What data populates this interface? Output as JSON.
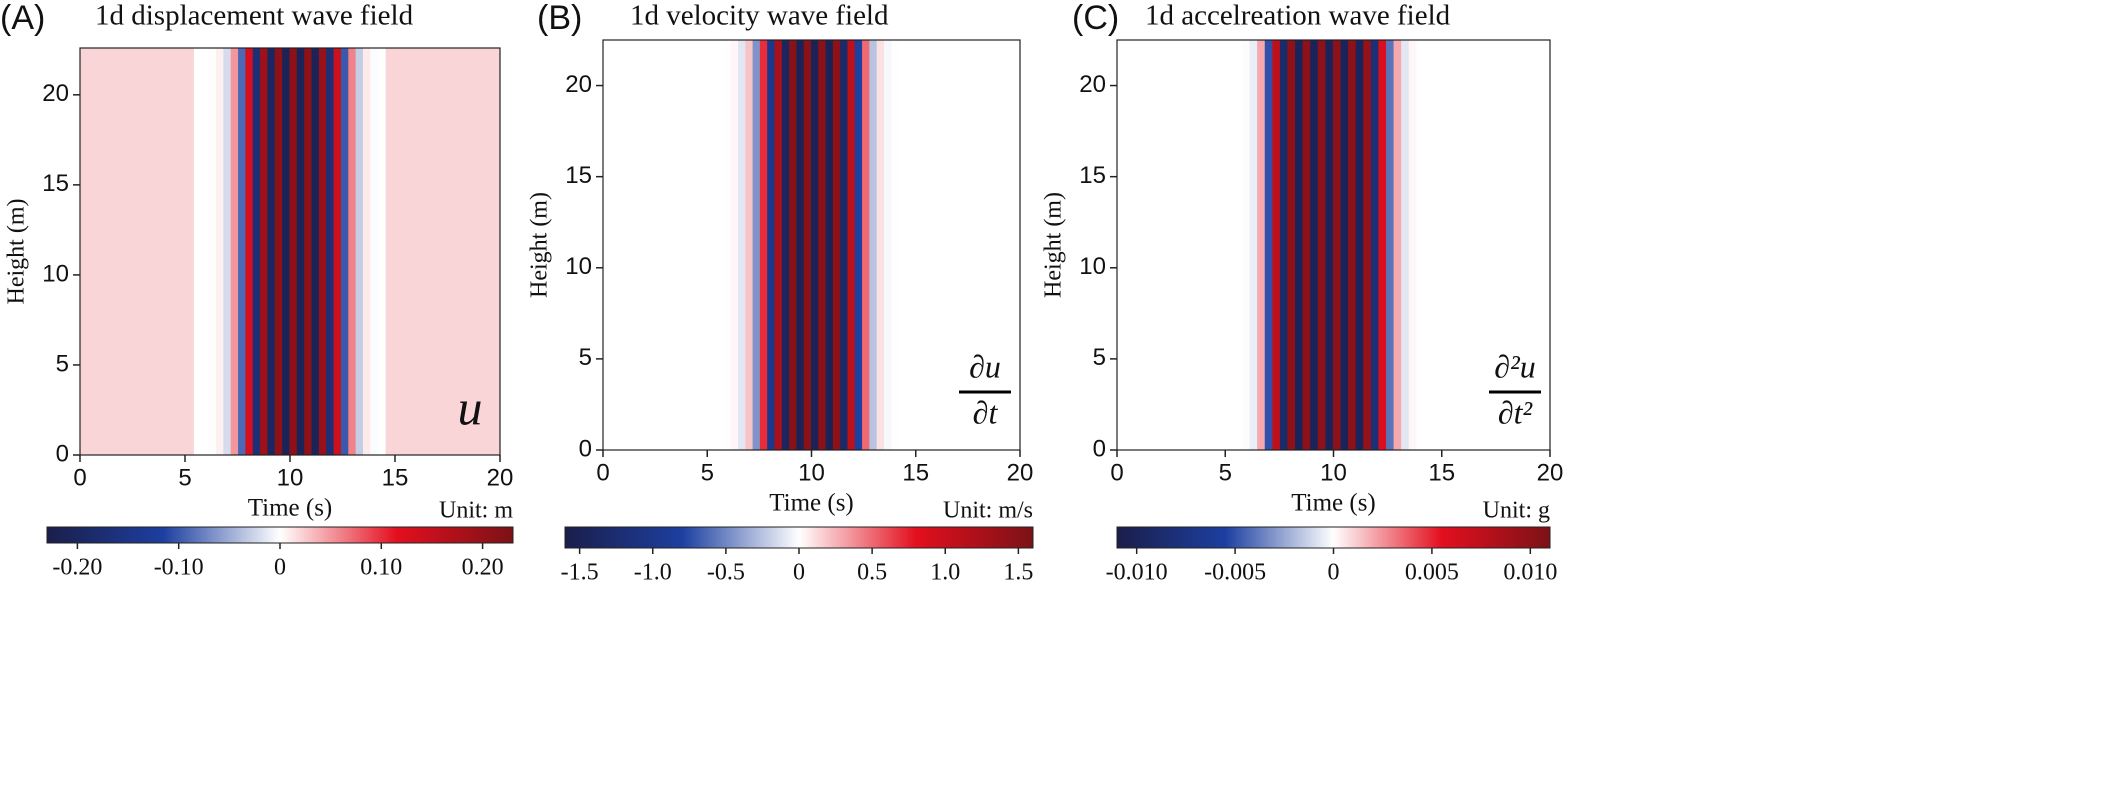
{
  "chart_data": [
    {
      "type": "heatmap",
      "panel": "(A)",
      "title": "1d displacement wave field",
      "xlabel": "Time (s)",
      "ylabel": "Height (m)",
      "unit": "Unit: m",
      "equation": "u",
      "x": [
        5.6,
        5.95,
        6.3,
        6.65,
        7.0,
        7.35,
        7.7,
        8.05,
        8.4,
        8.75,
        9.1,
        9.45,
        9.8,
        10.15,
        10.5,
        10.85,
        11.2,
        11.55,
        11.9,
        12.25,
        12.6,
        12.95,
        13.3,
        13.65,
        14.0,
        14.35
      ],
      "values": [
        0,
        0.0002,
        -0.001,
        0.007,
        -0.021,
        0.05,
        -0.09,
        0.13,
        -0.17,
        0.19,
        -0.2,
        0.21,
        -0.21,
        0.21,
        -0.21,
        0.21,
        -0.21,
        0.2,
        -0.17,
        0.14,
        -0.1,
        0.06,
        -0.03,
        0.01,
        -0.002,
        0
      ],
      "background": 0.02,
      "xlim": [
        0,
        20
      ],
      "xticks": [
        0,
        5,
        10,
        15,
        20
      ],
      "ylim": [
        0,
        22.6
      ],
      "yticks": [
        0,
        5,
        10,
        15,
        20
      ],
      "clim": [
        -0.23,
        0.23
      ],
      "cticks": [
        {
          "value": -0.2,
          "label": "-0.20"
        },
        {
          "value": -0.1,
          "label": "-0.10"
        },
        0,
        {
          "value": 0.1,
          "label": "0.10"
        },
        {
          "value": 0.2,
          "label": "0.20"
        }
      ],
      "colormap": [
        "#1b1e4a",
        "#1c3fa0",
        "#ffffff",
        "#e30f1e",
        "#7b1216"
      ]
    },
    {
      "type": "heatmap",
      "panel": "(B)",
      "title": "1d velocity wave field",
      "xlabel": "Time (s)",
      "ylabel": "Height (m)",
      "unit": "Unit: m/s",
      "equation": {
        "numerator": "∂u",
        "denominator": "∂t"
      },
      "x": [
        5.6,
        5.95,
        6.3,
        6.65,
        7.0,
        7.35,
        7.7,
        8.05,
        8.4,
        8.75,
        9.1,
        9.45,
        9.8,
        10.15,
        10.5,
        10.85,
        11.2,
        11.55,
        11.9,
        12.25,
        12.6,
        12.95,
        13.3,
        13.65,
        14.0,
        14.35
      ],
      "values": [
        0.001,
        -0.005,
        0.03,
        -0.1,
        0.2,
        -0.45,
        0.7,
        -1.0,
        1.25,
        -1.4,
        1.5,
        -1.5,
        1.5,
        -1.5,
        1.5,
        -1.5,
        1.45,
        -1.3,
        1.1,
        -0.8,
        0.5,
        -0.25,
        0.1,
        -0.03,
        0.005,
        0
      ],
      "background": 0,
      "xlim": [
        0,
        20
      ],
      "xticks": [
        0,
        5,
        10,
        15,
        20
      ],
      "ylim": [
        0,
        22.5
      ],
      "yticks": [
        0,
        5,
        10,
        15,
        20
      ],
      "clim": [
        -1.6,
        1.6
      ],
      "cticks": [
        -1.5,
        {
          "value": -1.0,
          "label": "-1.0"
        },
        -0.5,
        0,
        0.5,
        {
          "value": 1.0,
          "label": "1.0"
        },
        1.5
      ],
      "colormap": [
        "#1b1e4a",
        "#1c3fa0",
        "#ffffff",
        "#e30f1e",
        "#7b1216"
      ]
    },
    {
      "type": "heatmap",
      "panel": "(C)",
      "title": "1d accelreation wave field",
      "xlabel": "Time (s)",
      "ylabel": "Height (m)",
      "unit": "Unit: g",
      "equation": {
        "numerator": "∂²u",
        "denominator": "∂t²"
      },
      "x": [
        5.6,
        5.95,
        6.3,
        6.65,
        7.0,
        7.35,
        7.7,
        8.05,
        8.4,
        8.75,
        9.1,
        9.45,
        9.8,
        10.15,
        10.5,
        10.85,
        11.2,
        11.55,
        11.9,
        12.25,
        12.6,
        12.95,
        13.3,
        13.65,
        14.0,
        14.35
      ],
      "values": [
        0,
        0.0001,
        -0.0005,
        0.002,
        -0.005,
        0.0075,
        -0.009,
        0.01,
        -0.01,
        0.01,
        -0.01,
        0.01,
        -0.01,
        0.01,
        -0.01,
        0.01,
        -0.01,
        0.0095,
        -0.008,
        0.006,
        -0.004,
        0.002,
        -0.0007,
        0.0002,
        0,
        0
      ],
      "background": 0,
      "xlim": [
        0,
        20
      ],
      "xticks": [
        0,
        5,
        10,
        15,
        20
      ],
      "ylim": [
        0,
        22.5
      ],
      "yticks": [
        0,
        5,
        10,
        15,
        20
      ],
      "clim": [
        -0.011,
        0.011
      ],
      "cticks": [
        {
          "value": -0.01,
          "label": "-0.010"
        },
        {
          "value": -0.005,
          "label": "-0.005"
        },
        0,
        {
          "value": 0.005,
          "label": "0.005"
        },
        {
          "value": 0.01,
          "label": "0.010"
        }
      ],
      "colormap": [
        "#1b1e4a",
        "#1c3fa0",
        "#ffffff",
        "#e30f1e",
        "#7b1216"
      ]
    }
  ]
}
